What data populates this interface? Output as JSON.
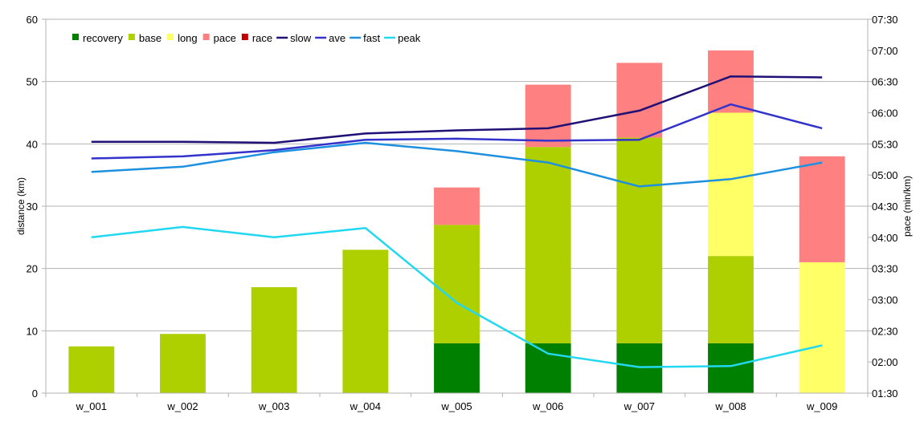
{
  "chart_data": {
    "type": "bar",
    "stacked": true,
    "categories": [
      "w_001",
      "w_002",
      "w_003",
      "w_004",
      "w_005",
      "w_006",
      "w_007",
      "w_008",
      "w_009"
    ],
    "xlabel": "",
    "ylabel": "distance (km)",
    "y2label": "pace (min/km)",
    "ylim": [
      0,
      60
    ],
    "yticks": [
      0,
      10,
      20,
      30,
      40,
      50,
      60
    ],
    "y2lim": [
      "01:30",
      "07:30"
    ],
    "y2ticks": [
      "01:30",
      "02:00",
      "02:30",
      "03:00",
      "03:30",
      "04:00",
      "04:30",
      "05:00",
      "05:30",
      "06:00",
      "06:30",
      "07:00",
      "07:30"
    ],
    "grid": "horizontal",
    "legend_position": "top-left",
    "bar_series": [
      {
        "name": "recovery",
        "color": "#008000",
        "values": [
          0,
          0,
          0,
          0,
          8,
          8,
          8,
          8,
          0
        ]
      },
      {
        "name": "base",
        "color": "#AECF00",
        "values": [
          7.5,
          9.5,
          17,
          23,
          19,
          31.5,
          33,
          14,
          0
        ]
      },
      {
        "name": "long",
        "color": "#FFFF66",
        "values": [
          0,
          0,
          0,
          0,
          0,
          0,
          0,
          23,
          21
        ]
      },
      {
        "name": "pace",
        "color": "#FF8080",
        "values": [
          0,
          0,
          0,
          0,
          6,
          10,
          12,
          10,
          17
        ]
      },
      {
        "name": "race",
        "color": "#C00000",
        "values": [
          0,
          0,
          0,
          0,
          0,
          0,
          0,
          0,
          0
        ]
      }
    ],
    "line_series": [
      {
        "name": "slow",
        "color": "#1F1076",
        "values": [
          "05:32",
          "05:32",
          "05:31",
          "05:40",
          "05:43",
          "05:45",
          "06:02",
          "06:35",
          "06:34"
        ]
      },
      {
        "name": "ave",
        "color": "#3333CC",
        "values": [
          "05:16",
          "05:18",
          "05:24",
          "05:34",
          "05:35",
          "05:33",
          "05:34",
          "06:08",
          "05:45"
        ]
      },
      {
        "name": "fast",
        "color": "#1E90E0",
        "values": [
          "05:03",
          "05:08",
          "05:22",
          "05:31",
          "05:23",
          "05:12",
          "04:49",
          "04:56",
          "05:12"
        ]
      },
      {
        "name": "peak",
        "color": "#22D8F0",
        "values": [
          "04:00",
          "04:10",
          "04:00",
          "04:09",
          "02:57",
          "02:08",
          "01:55",
          "01:56",
          "02:16"
        ]
      }
    ]
  }
}
